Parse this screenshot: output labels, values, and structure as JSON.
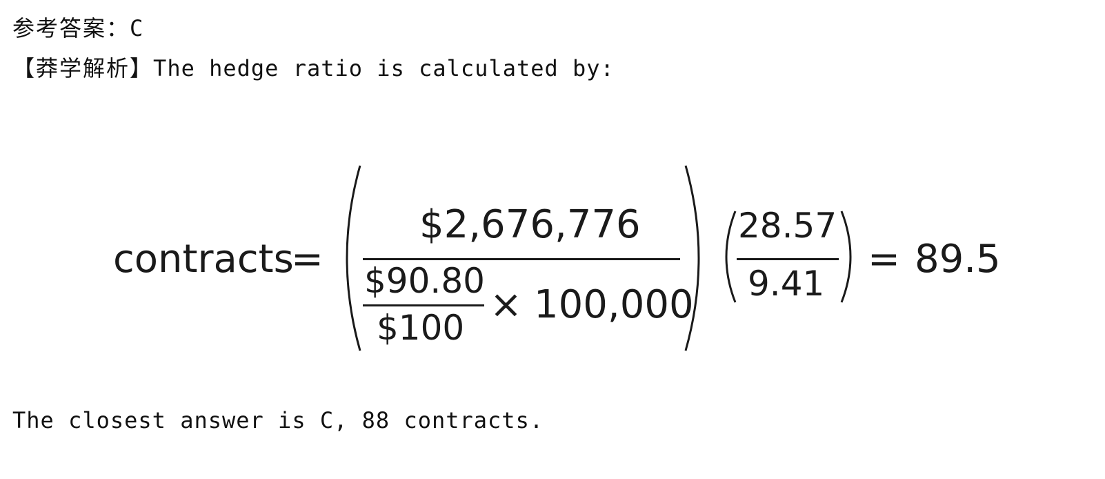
{
  "answer_line": {
    "label": "参考答案：",
    "value": "C"
  },
  "analysis_line": {
    "bracket_open": "【",
    "label": "莽学解析",
    "bracket_close": "】",
    "text": "The hedge ratio is calculated by:"
  },
  "formula": {
    "lhs": "contracts",
    "equals": "=",
    "numerator": "$2,676,776",
    "inner_numerator": "$90.80",
    "inner_denominator": "$100",
    "times": "×",
    "multiplier": "100,000",
    "beta_numerator": "28.57",
    "beta_denominator": "9.41",
    "result_equals": "=",
    "result": "89.5"
  },
  "closing_line": {
    "text": "The closest answer is C, 88 contracts."
  }
}
